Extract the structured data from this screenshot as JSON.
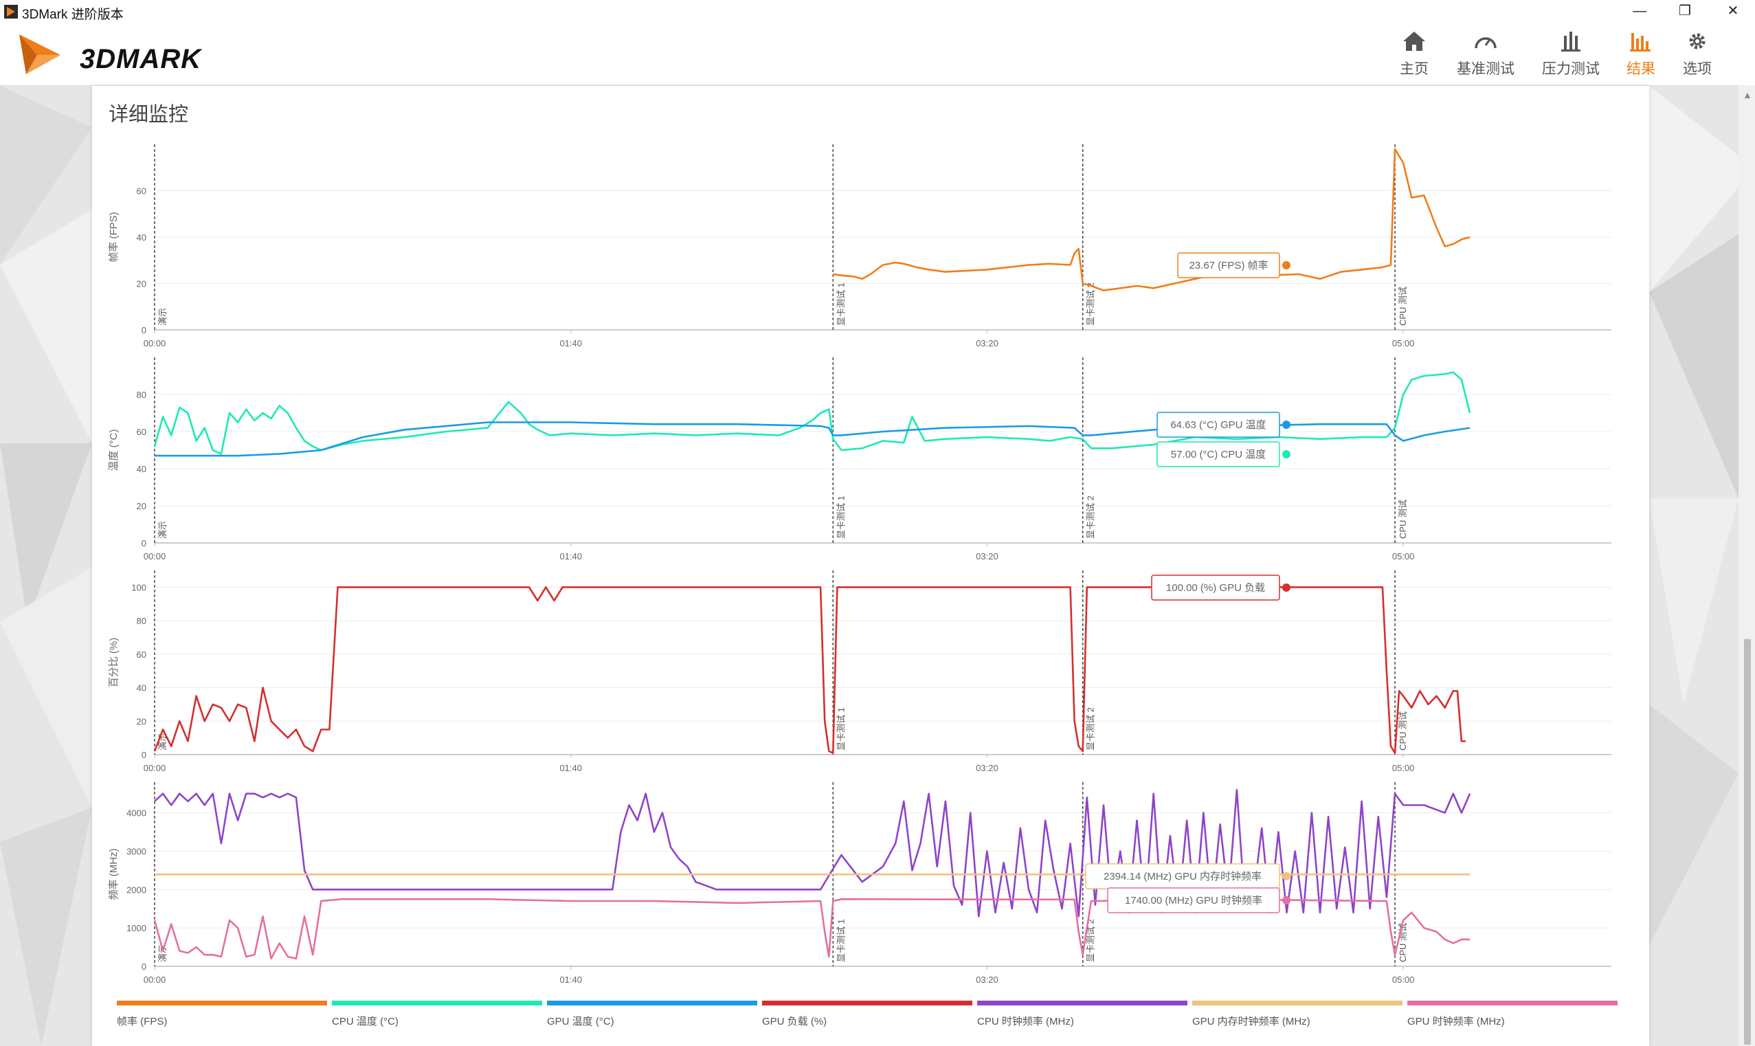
{
  "window": {
    "title": "3DMark 进阶版本"
  },
  "window_controls": {
    "minimize": "—",
    "maximize": "❐",
    "close": "✕"
  },
  "header": {
    "logo_text": "3DMARK",
    "nav": [
      {
        "label": "主页",
        "icon": "home-icon"
      },
      {
        "label": "基准测试",
        "icon": "gauge-icon"
      },
      {
        "label": "压力测试",
        "icon": "stress-bars-icon"
      },
      {
        "label": "结果",
        "icon": "results-bars-icon",
        "active": true
      },
      {
        "label": "选项",
        "icon": "gear-icon"
      }
    ]
  },
  "card": {
    "title": "详细监控"
  },
  "colors": {
    "accent": "#f07d19",
    "fps": "#f07d19",
    "cpu_temp": "#1de9b6",
    "gpu_temp": "#1a9ae6",
    "gpu_load": "#d32f2f",
    "cpu_clock": "#8e44c9",
    "gpu_mem_clock": "#f0c27b",
    "gpu_clock": "#e46fa0"
  },
  "chart_data": [
    {
      "type": "line",
      "ylabel": "帧率 (FPS)",
      "ylim": [
        0,
        80
      ],
      "yticks": [
        "0",
        "20",
        "40",
        "60"
      ],
      "xlim": [
        0,
        350
      ],
      "xticks": [
        "00:00",
        "01:40",
        "03:20",
        "05:00"
      ],
      "markers": [
        {
          "x": 0,
          "label": "演示"
        },
        {
          "x": 163,
          "label": "显卡测试 1"
        },
        {
          "x": 223,
          "label": "显卡测试 2"
        },
        {
          "x": 298,
          "label": "CPU 测试"
        }
      ],
      "series": [
        {
          "name": "帧率 (FPS)",
          "color": "#f07d19",
          "x": [
            163,
            165,
            168,
            170,
            172,
            175,
            178,
            180,
            183,
            186,
            190,
            195,
            200,
            205,
            210,
            215,
            220,
            221,
            222,
            223,
            225,
            228,
            232,
            236,
            240,
            245,
            250,
            255,
            258,
            262,
            265,
            270,
            275,
            280,
            285,
            290,
            295,
            297,
            298,
            300,
            302,
            305,
            308,
            310,
            312,
            314,
            316
          ],
          "values": [
            24,
            23.5,
            23,
            22,
            24,
            28,
            29,
            28.5,
            27,
            26,
            25,
            25.5,
            26,
            27,
            28,
            28.5,
            28,
            33,
            35,
            20,
            19,
            17,
            18,
            19,
            18,
            20,
            22,
            24,
            26,
            25,
            24,
            23.67,
            24,
            22,
            25,
            26,
            27,
            28,
            78,
            72,
            57,
            58,
            44,
            36,
            37,
            39,
            40
          ]
        }
      ],
      "tooltip": "23.67 (FPS) 帧率"
    },
    {
      "type": "line",
      "ylabel": "温度 (°C)",
      "ylim": [
        0,
        100
      ],
      "yticks": [
        "0",
        "20",
        "40",
        "60",
        "80"
      ],
      "xlim": [
        0,
        350
      ],
      "xticks": [
        "00:00",
        "01:40",
        "03:20",
        "05:00"
      ],
      "markers": [
        {
          "x": 0,
          "label": "演示"
        },
        {
          "x": 163,
          "label": "显卡测试 1"
        },
        {
          "x": 223,
          "label": "显卡测试 2"
        },
        {
          "x": 298,
          "label": "CPU 测试"
        }
      ],
      "series": [
        {
          "name": "CPU 温度 (°C)",
          "color": "#1de9b6",
          "x": [
            0,
            2,
            4,
            6,
            8,
            10,
            12,
            14,
            16,
            18,
            20,
            22,
            24,
            26,
            28,
            30,
            32,
            34,
            36,
            38,
            40,
            45,
            50,
            60,
            70,
            80,
            85,
            88,
            90,
            92,
            95,
            100,
            110,
            120,
            130,
            140,
            150,
            155,
            158,
            160,
            162,
            163,
            165,
            170,
            175,
            180,
            182,
            185,
            190,
            200,
            210,
            215,
            220,
            223,
            225,
            230,
            240,
            250,
            260,
            270,
            280,
            290,
            296,
            298,
            300,
            302,
            305,
            310,
            312,
            314,
            316
          ],
          "values": [
            52,
            68,
            58,
            73,
            70,
            55,
            62,
            50,
            48,
            70,
            65,
            72,
            66,
            70,
            67,
            74,
            70,
            62,
            55,
            52,
            50,
            53,
            55,
            57,
            60,
            62,
            76,
            70,
            64,
            61,
            58,
            59,
            58,
            59,
            58,
            59,
            58,
            62,
            66,
            70,
            72,
            56,
            50,
            51,
            55,
            54,
            68,
            55,
            56,
            57,
            56,
            55,
            57,
            56,
            51,
            51,
            53,
            57,
            56,
            57,
            56,
            57,
            57,
            62,
            80,
            88,
            90,
            91,
            92,
            88,
            70
          ]
        },
        {
          "name": "GPU 温度 (°C)",
          "color": "#1a9ae6",
          "x": [
            0,
            20,
            30,
            40,
            50,
            60,
            70,
            80,
            90,
            100,
            120,
            140,
            160,
            162,
            163,
            165,
            175,
            190,
            210,
            221,
            223,
            225,
            240,
            260,
            280,
            296,
            298,
            300,
            305,
            310,
            316
          ],
          "values": [
            47,
            47,
            48,
            50,
            57,
            61,
            63,
            65,
            65,
            65,
            64,
            64,
            63,
            62,
            58,
            58,
            60,
            62,
            63,
            62,
            58,
            58,
            61,
            63,
            64,
            64,
            58,
            55,
            58,
            60,
            62
          ]
        }
      ],
      "tooltips": [
        "64.63 (°C) GPU 温度",
        "57.00 (°C) CPU 温度"
      ]
    },
    {
      "type": "line",
      "ylabel": "百分比 (%)",
      "ylim": [
        0,
        110
      ],
      "yticks": [
        "0",
        "20",
        "40",
        "60",
        "80",
        "100"
      ],
      "xlim": [
        0,
        350
      ],
      "xticks": [
        "00:00",
        "01:40",
        "03:20",
        "05:00"
      ],
      "markers": [
        {
          "x": 0,
          "label": "演示"
        },
        {
          "x": 163,
          "label": "显卡测试 1"
        },
        {
          "x": 223,
          "label": "显卡测试 2"
        },
        {
          "x": 298,
          "label": "CPU 测试"
        }
      ],
      "series": [
        {
          "name": "GPU 负载 (%)",
          "color": "#d32f2f",
          "x": [
            0,
            2,
            4,
            6,
            8,
            10,
            12,
            14,
            16,
            18,
            20,
            22,
            24,
            26,
            28,
            30,
            32,
            34,
            36,
            38,
            40,
            42,
            44,
            45,
            60,
            80,
            90,
            92,
            94,
            96,
            98,
            100,
            120,
            160,
            161,
            162,
            163,
            164,
            180,
            200,
            220,
            221,
            222,
            223,
            224,
            240,
            260,
            280,
            295,
            296,
            297,
            298,
            299,
            300,
            302,
            304,
            306,
            308,
            310,
            312,
            313,
            314,
            315
          ],
          "values": [
            2,
            15,
            5,
            20,
            8,
            35,
            20,
            30,
            28,
            20,
            30,
            28,
            8,
            40,
            20,
            15,
            10,
            15,
            5,
            2,
            15,
            15,
            100,
            100,
            100,
            100,
            100,
            92,
            100,
            92,
            100,
            100,
            100,
            100,
            20,
            2,
            1,
            100,
            100,
            100,
            100,
            20,
            5,
            2,
            100,
            100,
            100,
            100,
            100,
            50,
            5,
            1,
            38,
            35,
            28,
            38,
            30,
            35,
            28,
            38,
            38,
            8,
            8
          ]
        }
      ],
      "tooltip": "100.00 (%) GPU 负载"
    },
    {
      "type": "line",
      "ylabel": "频率 (MHz)",
      "ylim": [
        0,
        4800
      ],
      "yticks": [
        "0",
        "1000",
        "2000",
        "3000",
        "4000"
      ],
      "xlim": [
        0,
        350
      ],
      "xticks": [
        "00:00",
        "01:40",
        "03:20",
        "05:00"
      ],
      "markers": [
        {
          "x": 0,
          "label": "演示"
        },
        {
          "x": 163,
          "label": "显卡测试 1"
        },
        {
          "x": 223,
          "label": "显卡测试 2"
        },
        {
          "x": 298,
          "label": "CPU 测试"
        }
      ],
      "series": [
        {
          "name": "CPU 时钟频率 (MHz)",
          "color": "#8e44c9",
          "x": [
            0,
            2,
            4,
            6,
            8,
            10,
            12,
            14,
            16,
            18,
            20,
            22,
            24,
            26,
            28,
            30,
            32,
            34,
            36,
            38,
            40,
            42,
            44,
            46,
            50,
            60,
            70,
            80,
            90,
            100,
            110,
            112,
            114,
            116,
            118,
            120,
            122,
            124,
            126,
            128,
            130,
            135,
            140,
            150,
            160,
            165,
            170,
            175,
            178,
            180,
            182,
            184,
            186,
            188,
            190,
            192,
            194,
            196,
            198,
            200,
            202,
            204,
            206,
            208,
            210,
            212,
            214,
            216,
            218,
            220,
            222,
            224,
            226,
            228,
            230,
            232,
            234,
            236,
            238,
            240,
            242,
            244,
            246,
            248,
            250,
            252,
            254,
            256,
            258,
            260,
            262,
            264,
            266,
            268,
            270,
            272,
            274,
            276,
            278,
            280,
            282,
            284,
            286,
            288,
            290,
            292,
            294,
            296,
            298,
            300,
            305,
            310,
            312,
            314,
            316
          ],
          "values": [
            4300,
            4500,
            4200,
            4500,
            4300,
            4500,
            4200,
            4500,
            3200,
            4500,
            3800,
            4500,
            4500,
            4400,
            4500,
            4400,
            4500,
            4400,
            2500,
            2000,
            2000,
            2000,
            2000,
            2000,
            2000,
            2000,
            2000,
            2000,
            2000,
            2000,
            2000,
            3500,
            4200,
            3800,
            4500,
            3500,
            4000,
            3100,
            2800,
            2600,
            2200,
            2000,
            2000,
            2000,
            2000,
            2900,
            2200,
            2600,
            3200,
            4300,
            2500,
            3200,
            4500,
            2600,
            4300,
            2100,
            1600,
            4000,
            1300,
            3000,
            1400,
            2700,
            1500,
            3600,
            2000,
            1400,
            3800,
            2500,
            1500,
            3200,
            1300,
            4400,
            1600,
            4200,
            1600,
            3000,
            1400,
            3800,
            1500,
            4500,
            1400,
            3400,
            1500,
            3800,
            1400,
            4000,
            1500,
            3700,
            1800,
            4600,
            1500,
            1800,
            3600,
            1400,
            3500,
            1400,
            3000,
            1400,
            4000,
            1400,
            3900,
            1500,
            3100,
            1400,
            4300,
            1500,
            3900,
            1800,
            4500,
            4200,
            4200,
            4000,
            4500,
            4000,
            4500
          ]
        },
        {
          "name": "GPU 内存时钟频率 (MHz)",
          "color": "#f0c27b",
          "x": [
            0,
            316
          ],
          "values": [
            2394.14,
            2394.14
          ]
        },
        {
          "name": "GPU 时钟频率 (MHz)",
          "color": "#e46fa0",
          "x": [
            0,
            2,
            4,
            6,
            8,
            10,
            12,
            14,
            16,
            18,
            20,
            22,
            24,
            26,
            28,
            30,
            32,
            34,
            36,
            38,
            40,
            45,
            60,
            80,
            100,
            120,
            140,
            160,
            161,
            162,
            163,
            165,
            200,
            221,
            222,
            223,
            225,
            260,
            296,
            297,
            298,
            300,
            302,
            305,
            308,
            310,
            312,
            314,
            316
          ],
          "values": [
            1200,
            400,
            1100,
            400,
            350,
            500,
            300,
            300,
            250,
            1200,
            1000,
            250,
            300,
            1300,
            200,
            600,
            250,
            200,
            1300,
            300,
            1700,
            1750,
            1750,
            1750,
            1700,
            1700,
            1650,
            1700,
            900,
            250,
            1700,
            1750,
            1740,
            1740,
            900,
            300,
            1700,
            1740,
            1700,
            900,
            300,
            1200,
            1400,
            1000,
            900,
            700,
            600,
            700,
            700
          ]
        }
      ],
      "tooltips": [
        "2394.14 (MHz) GPU 内存时钟频率",
        "1740.00 (MHz) GPU 时钟频率"
      ]
    }
  ],
  "legend": [
    {
      "label": "帧率 (FPS)",
      "color": "#f07d19"
    },
    {
      "label": "CPU 温度 (°C)",
      "color": "#1de9b6"
    },
    {
      "label": "GPU 温度 (°C)",
      "color": "#1a9ae6"
    },
    {
      "label": "GPU 负载 (%)",
      "color": "#d32f2f"
    },
    {
      "label": "CPU 时钟频率 (MHz)",
      "color": "#8e44c9"
    },
    {
      "label": "GPU 内存时钟频率 (MHz)",
      "color": "#f0c27b"
    },
    {
      "label": "GPU 时钟频率 (MHz)",
      "color": "#e46fa0"
    }
  ]
}
